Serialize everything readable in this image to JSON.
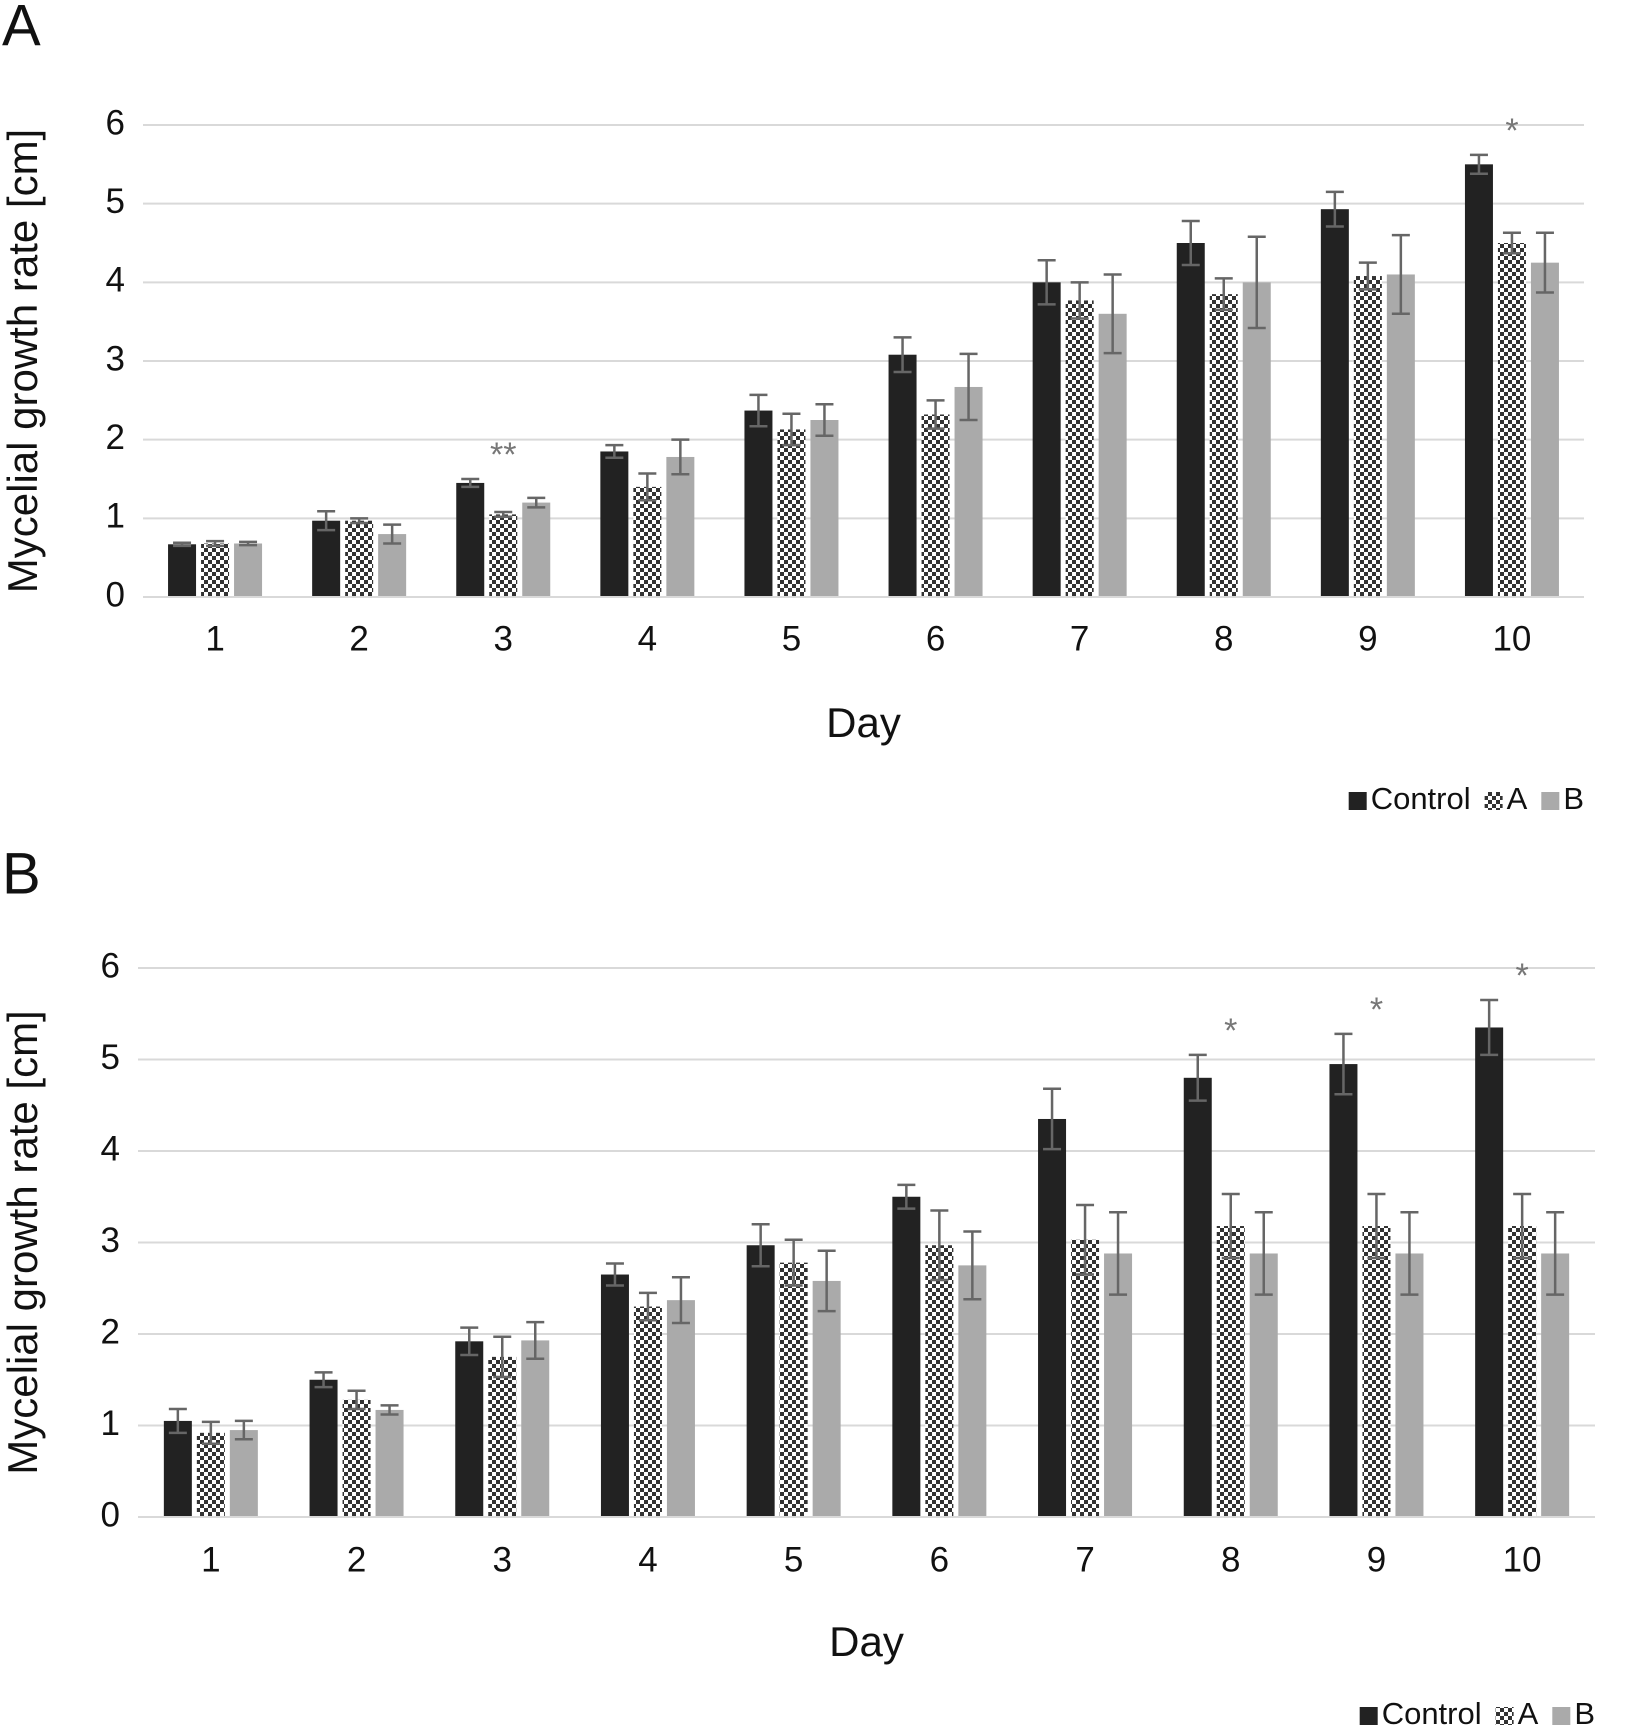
{
  "chart_data": [
    {
      "type": "bar",
      "panel_label": "A",
      "x_label": "Day",
      "y_label": "Mycelial growth rate [cm]",
      "categories": [
        1,
        2,
        3,
        4,
        5,
        6,
        7,
        8,
        9,
        10
      ],
      "series": [
        {
          "name": "Control",
          "color": "#222222",
          "values": [
            0.67,
            0.97,
            1.45,
            1.85,
            2.37,
            3.08,
            4.0,
            4.5,
            4.93,
            5.5
          ],
          "errors": [
            0.02,
            0.12,
            0.05,
            0.08,
            0.2,
            0.22,
            0.28,
            0.28,
            0.22,
            0.12
          ]
        },
        {
          "name": "A",
          "color": "#333333",
          "pattern": "checker",
          "values": [
            0.68,
            0.97,
            1.05,
            1.4,
            2.13,
            2.32,
            3.77,
            3.85,
            4.08,
            4.5
          ],
          "errors": [
            0.03,
            0.03,
            0.03,
            0.17,
            0.2,
            0.18,
            0.23,
            0.2,
            0.17,
            0.13
          ]
        },
        {
          "name": "B",
          "color": "#aaaaaa",
          "values": [
            0.68,
            0.8,
            1.2,
            1.78,
            2.25,
            2.67,
            3.6,
            4.0,
            4.1,
            4.25
          ],
          "errors": [
            0.02,
            0.12,
            0.06,
            0.22,
            0.2,
            0.42,
            0.5,
            0.58,
            0.5,
            0.38
          ]
        }
      ],
      "annotations": [
        {
          "text": "**",
          "category": 3
        },
        {
          "text": "*",
          "category": 10
        }
      ],
      "ylim": [
        0,
        6
      ],
      "yticks": [
        0,
        1,
        2,
        3,
        4,
        5,
        6
      ],
      "grid": true,
      "legend": "bottom-right"
    },
    {
      "type": "bar",
      "panel_label": "B",
      "x_label": "Day",
      "y_label": "Mycelial growth rate [cm]",
      "categories": [
        1,
        2,
        3,
        4,
        5,
        6,
        7,
        8,
        9,
        10
      ],
      "series": [
        {
          "name": "Control",
          "color": "#222222",
          "values": [
            1.05,
            1.5,
            1.92,
            2.65,
            2.97,
            3.5,
            4.35,
            4.8,
            4.95,
            5.35
          ],
          "errors": [
            0.13,
            0.08,
            0.15,
            0.12,
            0.23,
            0.13,
            0.33,
            0.25,
            0.33,
            0.3
          ]
        },
        {
          "name": "A",
          "color": "#333333",
          "pattern": "checker",
          "values": [
            0.92,
            1.28,
            1.75,
            2.3,
            2.78,
            2.97,
            3.03,
            3.18,
            3.18,
            3.18
          ],
          "errors": [
            0.12,
            0.1,
            0.22,
            0.15,
            0.25,
            0.38,
            0.38,
            0.35,
            0.35,
            0.35
          ]
        },
        {
          "name": "B",
          "color": "#aaaaaa",
          "values": [
            0.95,
            1.17,
            1.93,
            2.37,
            2.58,
            2.75,
            2.88,
            2.88,
            2.88,
            2.88
          ],
          "errors": [
            0.1,
            0.05,
            0.2,
            0.25,
            0.33,
            0.37,
            0.45,
            0.45,
            0.45,
            0.45
          ]
        }
      ],
      "annotations": [
        {
          "text": "*",
          "category": 8
        },
        {
          "text": "*",
          "category": 9
        },
        {
          "text": "*",
          "category": 10
        }
      ],
      "ylim": [
        0,
        6
      ],
      "yticks": [
        0,
        1,
        2,
        3,
        4,
        5,
        6
      ],
      "grid": true,
      "legend": "bottom-right"
    }
  ]
}
